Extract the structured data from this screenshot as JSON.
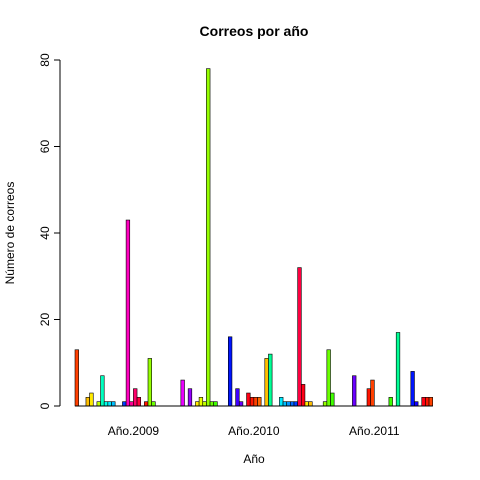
{
  "chart_data": {
    "type": "bar",
    "title": "Correos por año",
    "xlabel": "Año",
    "ylabel": "Número de correos",
    "ylim": [
      0,
      80
    ],
    "yticks": [
      0,
      20,
      40,
      60,
      80
    ],
    "grid": false,
    "legend": "none",
    "categories": [
      "Año.2009",
      "Año.2010",
      "Año.2011"
    ],
    "groups": [
      {
        "category": "Año.2009",
        "values": [
          13,
          0,
          0,
          2,
          3,
          0,
          1,
          7,
          1,
          1,
          1,
          0,
          0,
          1,
          43,
          1,
          4,
          2,
          0,
          1,
          11,
          1,
          0,
          0,
          0,
          0,
          0,
          0,
          0,
          6,
          0,
          4
        ],
        "colors": [
          "#ff4000",
          "#ff6a00",
          "#ff9500",
          "#ffbf00",
          "#ffea00",
          "#eaff00",
          "#bfff00",
          "#00ffbf",
          "#00ffea",
          "#00eaff",
          "#00bfff",
          "#0095ff",
          "#006aff",
          "#0040ff",
          "#ff00bf",
          "#ff0095",
          "#ff006a",
          "#ff0040",
          "#ff0015",
          "#ff1500",
          "#95ff00",
          "#6aff00",
          "#40ff00",
          "#15ff00",
          "#00ff15",
          "#00ff40",
          "#00ff6a",
          "#00ff95",
          "#ff00ea",
          "#ea00ff",
          "#bf00ff",
          "#9500ff"
        ]
      },
      {
        "category": "Año.2010",
        "values": [
          1,
          2,
          1,
          78,
          1,
          1,
          0,
          0,
          0,
          16,
          0,
          4,
          1,
          0,
          3,
          2,
          2,
          2,
          0,
          11,
          12,
          0,
          0,
          2,
          1,
          1,
          1,
          1,
          32,
          5,
          1,
          1
        ],
        "colors": [
          "#ffea00",
          "#eaff00",
          "#bfff00",
          "#95ff00",
          "#6aff00",
          "#40ff00",
          "#15ff00",
          "#00ff15",
          "#00ff40",
          "#0015ff",
          "#1500ff",
          "#4000ff",
          "#6a00ff",
          "#9500ff",
          "#ff0015",
          "#ff1500",
          "#ff4000",
          "#ff6a00",
          "#ff9500",
          "#ffbf00",
          "#00ff95",
          "#00ffbf",
          "#00ffea",
          "#00eaff",
          "#00bfff",
          "#0095ff",
          "#006aff",
          "#0040ff",
          "#ff0040",
          "#ff0015",
          "#ffea00",
          "#ffbf00"
        ]
      },
      {
        "category": "Año.2011",
        "values": [
          0,
          0,
          1,
          13,
          3,
          0,
          0,
          0,
          0,
          0,
          7,
          0,
          0,
          0,
          4,
          6,
          0,
          0,
          0,
          0,
          2,
          0,
          17,
          0,
          0,
          0,
          8,
          1,
          0,
          2,
          2,
          2
        ],
        "colors": [
          "#eaff00",
          "#bfff00",
          "#95ff00",
          "#6aff00",
          "#40ff00",
          "#15ff00",
          "#00ff15",
          "#00ff40",
          "#00ff6a",
          "#4000ff",
          "#6a00ff",
          "#9500ff",
          "#bf00ff",
          "#ea00ff",
          "#ff1500",
          "#ff4000",
          "#ff6a00",
          "#ff9500",
          "#ffbf00",
          "#00ff95",
          "#40ff00",
          "#15ff00",
          "#00ff95",
          "#00ffbf",
          "#00ffea",
          "#0040ff",
          "#0015ff",
          "#1500ff",
          "#ff0040",
          "#ff0015",
          "#ff1500",
          "#ff4000"
        ]
      }
    ]
  }
}
